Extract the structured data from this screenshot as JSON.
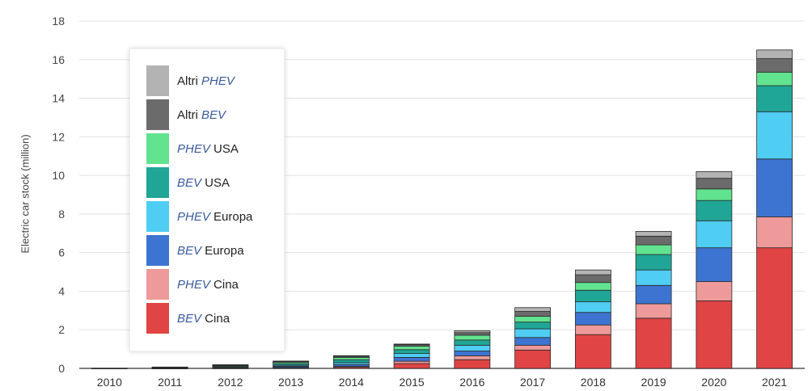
{
  "chart_data": {
    "type": "bar",
    "stacked": true,
    "ylabel": "Electric car stock (million)",
    "ylim": [
      0,
      18
    ],
    "yticks": [
      0,
      2,
      4,
      6,
      8,
      10,
      12,
      14,
      16,
      18
    ],
    "grid": true,
    "legend_position": "top-left",
    "categories": [
      "2010",
      "2011",
      "2012",
      "2013",
      "2014",
      "2015",
      "2016",
      "2017",
      "2018",
      "2019",
      "2020",
      "2021"
    ],
    "series": [
      {
        "name": "BEV Cina",
        "kind": "BEV",
        "region": "Cina",
        "color": "#e04444",
        "values": [
          0.0,
          0.01,
          0.02,
          0.03,
          0.06,
          0.25,
          0.45,
          0.95,
          1.75,
          2.6,
          3.5,
          6.25
        ]
      },
      {
        "name": "PHEV Cina",
        "kind": "PHEV",
        "region": "Cina",
        "color": "#ee9a9a",
        "values": [
          0.0,
          0.0,
          0.0,
          0.02,
          0.04,
          0.12,
          0.2,
          0.25,
          0.5,
          0.75,
          1.0,
          1.6
        ]
      },
      {
        "name": "BEV Europa",
        "kind": "BEV",
        "region": "Europa",
        "color": "#3d74d1",
        "values": [
          0.0,
          0.01,
          0.02,
          0.06,
          0.1,
          0.2,
          0.25,
          0.4,
          0.65,
          0.95,
          1.75,
          3.0
        ]
      },
      {
        "name": "PHEV Europa",
        "kind": "PHEV",
        "region": "Europa",
        "color": "#4fcdf2",
        "values": [
          0.0,
          0.0,
          0.02,
          0.05,
          0.1,
          0.2,
          0.3,
          0.45,
          0.55,
          0.8,
          1.4,
          2.45
        ]
      },
      {
        "name": "BEV USA",
        "kind": "BEV",
        "region": "USA",
        "color": "#1fa696",
        "values": [
          0.0,
          0.01,
          0.04,
          0.08,
          0.15,
          0.2,
          0.27,
          0.35,
          0.6,
          0.8,
          1.05,
          1.35
        ]
      },
      {
        "name": "PHEV USA",
        "kind": "PHEV",
        "region": "USA",
        "color": "#62e38f",
        "values": [
          0.0,
          0.01,
          0.04,
          0.08,
          0.12,
          0.18,
          0.25,
          0.3,
          0.4,
          0.5,
          0.6,
          0.7
        ]
      },
      {
        "name": "Altri BEV",
        "kind": "BEV",
        "region": "Altri",
        "color": "#6b6b6b",
        "values": [
          0.01,
          0.02,
          0.03,
          0.04,
          0.06,
          0.08,
          0.13,
          0.25,
          0.4,
          0.45,
          0.55,
          0.7
        ]
      },
      {
        "name": "Altri PHEV",
        "kind": "PHEV",
        "region": "Altri",
        "color": "#b3b3b3",
        "values": [
          0.0,
          0.01,
          0.02,
          0.02,
          0.03,
          0.03,
          0.1,
          0.2,
          0.25,
          0.25,
          0.35,
          0.45
        ]
      }
    ]
  },
  "legend": {
    "items": [
      {
        "prefix": "Altri ",
        "kind": "PHEV",
        "suffix": "",
        "color": "#b3b3b3"
      },
      {
        "prefix": "Altri ",
        "kind": "BEV",
        "suffix": "",
        "color": "#6b6b6b"
      },
      {
        "prefix": "",
        "kind": "PHEV",
        "suffix": " USA",
        "color": "#62e38f"
      },
      {
        "prefix": "",
        "kind": "BEV",
        "suffix": " USA",
        "color": "#1fa696"
      },
      {
        "prefix": "",
        "kind": "PHEV",
        "suffix": " Europa",
        "color": "#4fcdf2"
      },
      {
        "prefix": "",
        "kind": "BEV",
        "suffix": " Europa",
        "color": "#3d74d1"
      },
      {
        "prefix": "",
        "kind": "PHEV",
        "suffix": " Cina",
        "color": "#ee9a9a"
      },
      {
        "prefix": "",
        "kind": "BEV",
        "suffix": " Cina",
        "color": "#e04444"
      }
    ]
  }
}
